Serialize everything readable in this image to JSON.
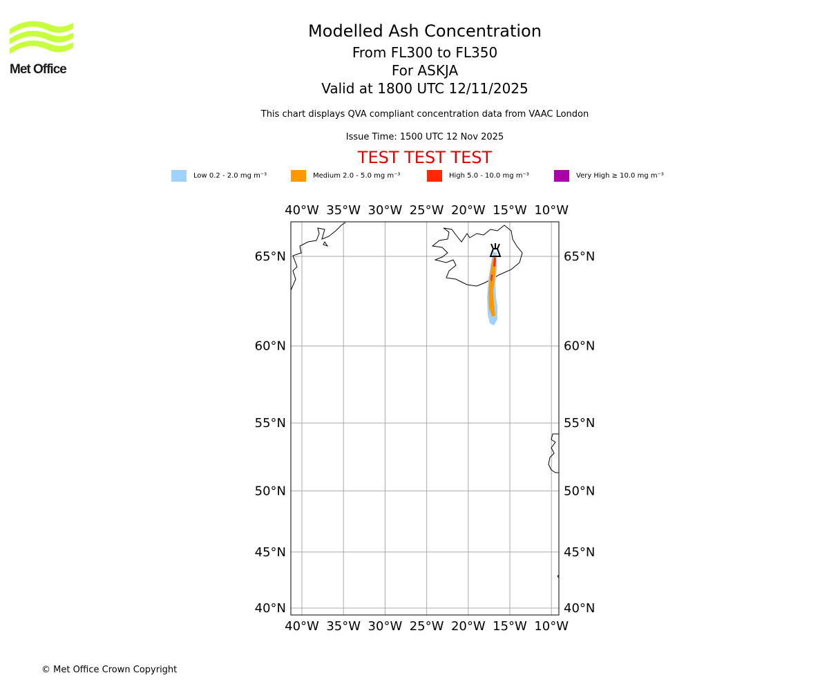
{
  "logo": {
    "text": "Met Office",
    "color": "#c8ff3c"
  },
  "header": {
    "title": "Modelled Ash Concentration",
    "levels": "From FL300 to FL350",
    "volcano": "For ASKJA",
    "valid": "Valid at 1800 UTC 12/11/2025",
    "note": "This chart displays QVA compliant concentration data from VAAC London",
    "issue": "Issue Time: 1500 UTC 12 Nov 2025",
    "test": "TEST TEST TEST"
  },
  "legend": [
    {
      "label": "Low 0.2 - 2.0 mg m⁻³",
      "color": "#a0d2ff"
    },
    {
      "label": "Medium 2.0 - 5.0 mg m⁻³",
      "color": "#ff9900"
    },
    {
      "label": "High 5.0 - 10.0 mg m⁻³",
      "color": "#ff2800"
    },
    {
      "label": "Very High ≥ 10.0 mg m⁻³",
      "color": "#aa00aa"
    }
  ],
  "chart_data": {
    "type": "map",
    "projection": "mercator",
    "lon_range": [
      -41.3,
      -9.8
    ],
    "lat_range": [
      39.6,
      66.8
    ],
    "lon_ticks": [
      -40,
      -35,
      -30,
      -25,
      -20,
      -15,
      -10
    ],
    "lon_tick_labels": [
      "40°W",
      "35°W",
      "30°W",
      "25°W",
      "20°W",
      "15°W",
      "10°W"
    ],
    "lat_ticks": [
      65,
      60,
      55,
      50,
      45,
      40
    ],
    "lat_tick_labels": [
      "65°N",
      "60°N",
      "55°N",
      "50°N",
      "45°N",
      "40°N"
    ],
    "grid": true,
    "volcano": {
      "name": "ASKJA",
      "lon": -16.7,
      "lat": 65.0
    },
    "plume_extent": {
      "lon": [
        -17.9,
        -16.6
      ],
      "lat": [
        61.3,
        65.0
      ]
    }
  },
  "footer": {
    "copyright": "© Met Office Crown Copyright"
  }
}
